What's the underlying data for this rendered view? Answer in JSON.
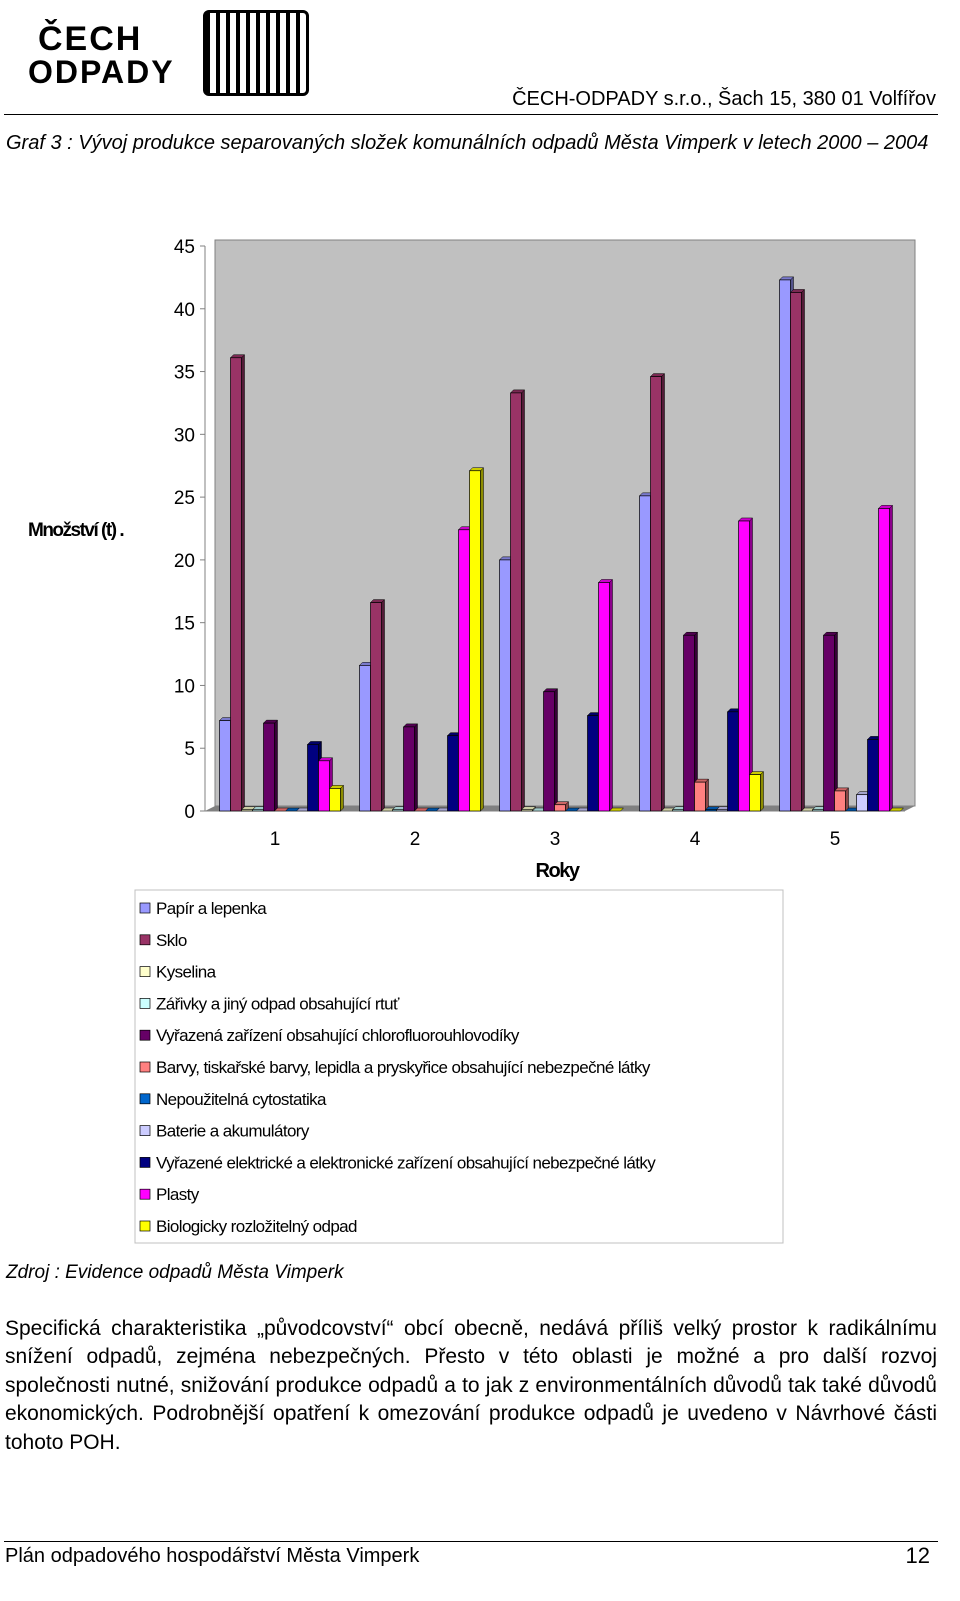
{
  "header": {
    "logo_line1": "ČECH",
    "logo_line2": "ODPADY",
    "company": "ČECH-ODPADY s.r.o., Šach 15, 380 01  Volfířov"
  },
  "caption": "Graf 3 : Vývoj produkce separovaných složek komunálních odpadů Města Vimperk v letech 2000 – 2004",
  "chart_data": {
    "type": "bar",
    "ylabel": "Množství (t) .",
    "xlabel": "Roky",
    "categories": [
      "1",
      "2",
      "3",
      "4",
      "5"
    ],
    "ylim": [
      0,
      45
    ],
    "yticks": [
      0,
      5,
      10,
      15,
      20,
      25,
      30,
      35,
      40,
      45
    ],
    "grid": false,
    "series": [
      {
        "name": "Papír a lepenka",
        "color": "#9999ff",
        "values": [
          7.2,
          11.6,
          20.0,
          25.1,
          42.3
        ]
      },
      {
        "name": "Sklo",
        "color": "#993366",
        "values": [
          36.1,
          16.6,
          33.3,
          34.6,
          41.3
        ]
      },
      {
        "name": "Kyselina",
        "color": "#ffffcc",
        "values": [
          0.1,
          0,
          0.1,
          0,
          0
        ]
      },
      {
        "name": "Zářivky a jiný odpad obsahující rtuť",
        "color": "#ccffff",
        "values": [
          0.1,
          0.1,
          0,
          0.1,
          0.1
        ]
      },
      {
        "name": "Vyřazená zařízení obsahující chlorofluorouhlovodíky",
        "color": "#660066",
        "values": [
          7.0,
          6.7,
          9.5,
          14.0,
          14.0
        ]
      },
      {
        "name": "Barvy, tiskařské barvy, lepidla a pryskyřice obsahující nebezpečné látky",
        "color": "#ff8080",
        "values": [
          0,
          0,
          0.5,
          2.3,
          1.6
        ]
      },
      {
        "name": "Nepoužitelná cytostatika",
        "color": "#0066cc",
        "values": [
          0,
          0,
          0,
          0.1,
          0
        ]
      },
      {
        "name": "Baterie a akumulátory",
        "color": "#ccccff",
        "values": [
          0,
          0,
          0,
          0.1,
          1.3
        ]
      },
      {
        "name": "Vyřazené elektrické a elektronické zařízení obsahující nebezpečné látky",
        "color": "#000080",
        "values": [
          5.3,
          6.0,
          7.6,
          7.9,
          5.7
        ]
      },
      {
        "name": "Plasty",
        "color": "#ff00ff",
        "values": [
          4.0,
          22.4,
          18.2,
          23.1,
          24.1
        ]
      },
      {
        "name": "Biologicky rozložitelný odpad",
        "color": "#ffff00",
        "values": [
          1.8,
          27.1,
          0,
          2.9,
          0
        ]
      }
    ]
  },
  "source": "Zdroj : Evidence odpadů Města Vimperk",
  "paragraph": "Specifická charakteristika „původcovství“ obcí obecně, nedává příliš velký prostor k radikálnímu snížení odpadů, zejména nebezpečných.  Přesto v této oblasti je možné a pro další rozvoj společnosti nutné, snižování produkce odpadů a to jak z environmentálních důvodů tak také důvodů ekonomických. Podrobnější opatření k omezování produkce odpadů je uvedeno v Návrhové části tohoto POH.",
  "footer": {
    "title": "Plán odpadového hospodářství Města Vimperk",
    "page": "12"
  }
}
